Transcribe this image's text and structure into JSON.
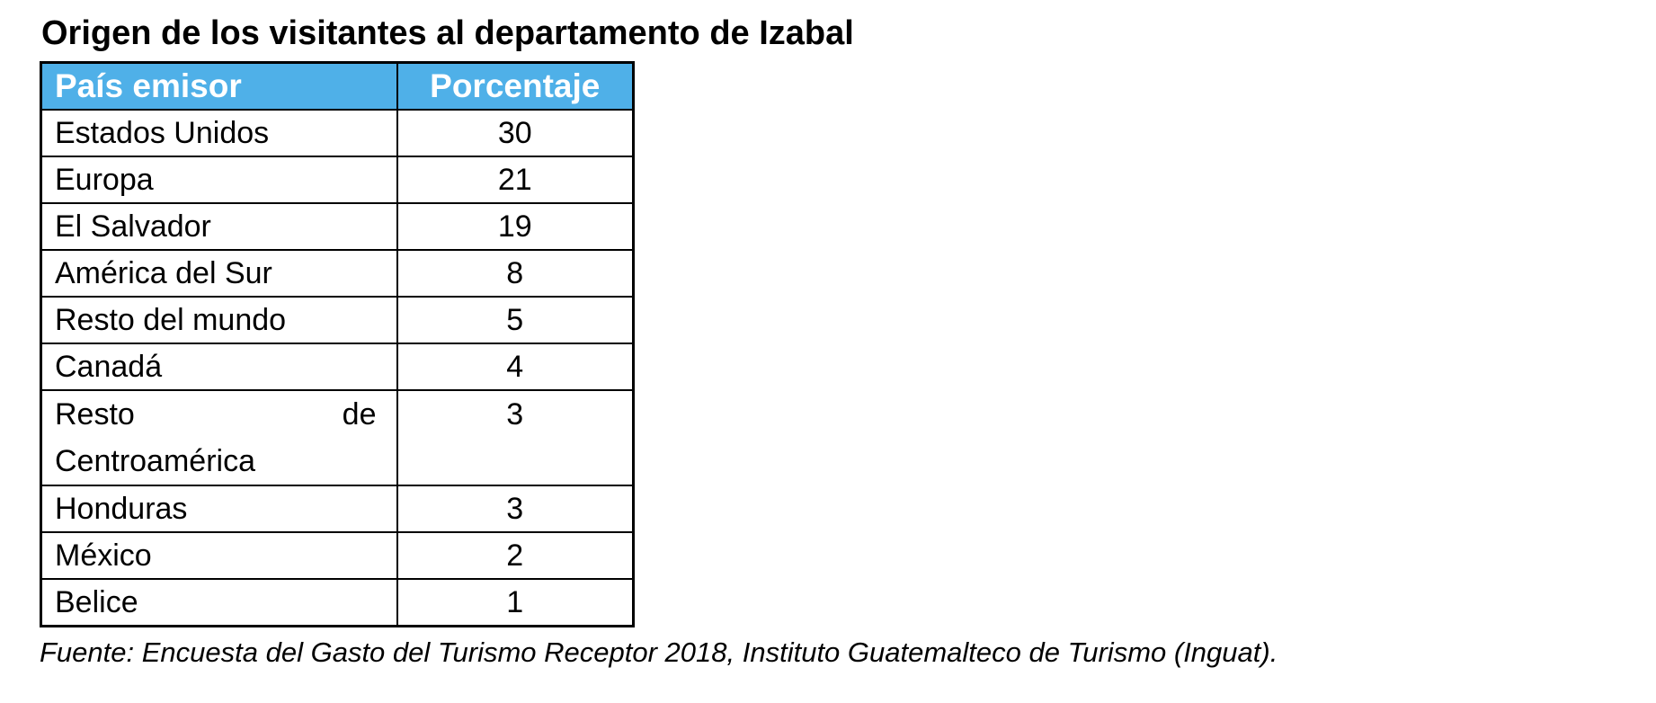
{
  "page": {
    "title": "Origen de los visitantes al departamento de Izabal",
    "source_note": "Fuente: Encuesta del Gasto del Turismo Receptor 2018, Instituto Guatemalteco de Turismo (Inguat)."
  },
  "colors": {
    "header_bg": "#4FB0E8",
    "header_text": "#FFFFFF",
    "border": "#000000",
    "body_text": "#000000",
    "background": "#FFFFFF"
  },
  "table": {
    "header": {
      "pais": "País emisor",
      "porcentaje": "Porcentaje"
    },
    "rows": [
      {
        "pais": "Estados Unidos",
        "porcentaje": "30"
      },
      {
        "pais": "Europa",
        "porcentaje": "21"
      },
      {
        "pais": "El Salvador",
        "porcentaje": "19"
      },
      {
        "pais": "América del Sur",
        "porcentaje": "8"
      },
      {
        "pais": "Resto del mundo",
        "porcentaje": "5"
      },
      {
        "pais": "Canadá",
        "porcentaje": "4"
      },
      {
        "pais": "Resto de Centroamérica",
        "porcentaje": "3",
        "justified_lines": {
          "line1_left": "Resto",
          "line1_right": "de",
          "line2": "Centroamérica"
        }
      },
      {
        "pais": "Honduras",
        "porcentaje": "3"
      },
      {
        "pais": "México",
        "porcentaje": "2"
      },
      {
        "pais": "Belice",
        "porcentaje": "1"
      }
    ]
  },
  "chart_data": {
    "type": "table",
    "title": "Origen de los visitantes al departamento de Izabal",
    "columns": [
      "País emisor",
      "Porcentaje"
    ],
    "categories": [
      "Estados Unidos",
      "Europa",
      "El Salvador",
      "América del Sur",
      "Resto del mundo",
      "Canadá",
      "Resto de Centroamérica",
      "Honduras",
      "México",
      "Belice"
    ],
    "values": [
      30,
      21,
      19,
      8,
      5,
      4,
      3,
      3,
      2,
      1
    ]
  }
}
